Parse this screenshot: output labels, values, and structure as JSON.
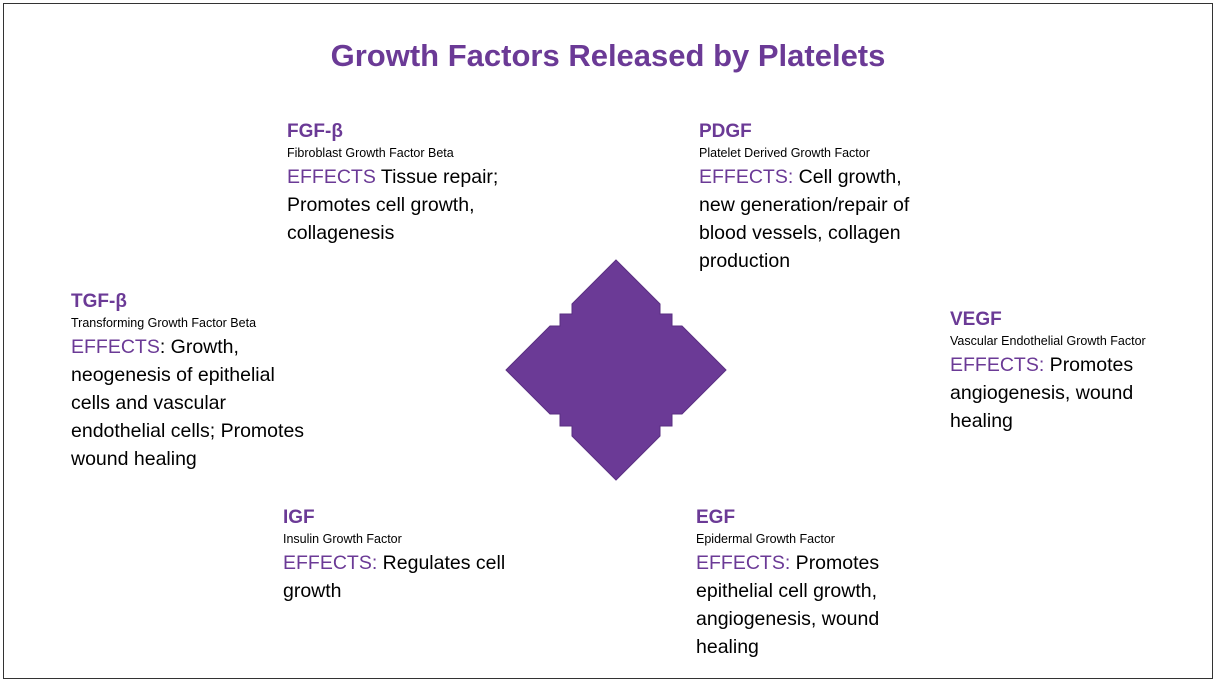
{
  "title": "Growth Factors Released by Platelets",
  "colors": {
    "accent": "#6b3a96",
    "arrow_fill": "#6b3a96",
    "text": "#000000",
    "border": "#333333"
  },
  "center_icon": "four-way-arrow-icon",
  "factors": {
    "fgf": {
      "abbr": "FGF-β",
      "full_name": "Fibroblast Growth Factor Beta",
      "effects_label": "EFFECTS",
      "effects_text": " Tissue repair; Promotes cell growth, collagenesis"
    },
    "pdgf": {
      "abbr": "PDGF",
      "full_name": "Platelet Derived Growth Factor",
      "effects_label": "EFFECTS:",
      "effects_text": " Cell growth, new generation/repair of blood vessels, collagen production"
    },
    "tgf": {
      "abbr": "TGF-β",
      "full_name": "Transforming Growth Factor Beta",
      "effects_label": "EFFECTS",
      "effects_text": ": Growth, neogenesis of epithelial cells and vascular endothelial cells; Promotes wound healing"
    },
    "vegf": {
      "abbr": "VEGF",
      "full_name": "Vascular Endothelial Growth Factor",
      "effects_label": "EFFECTS:",
      "effects_text": " Promotes angiogenesis, wound healing"
    },
    "igf": {
      "abbr": "IGF",
      "full_name": "Insulin Growth Factor",
      "effects_label": "EFFECTS:",
      "effects_text": " Regulates cell growth"
    },
    "egf": {
      "abbr": "EGF",
      "full_name": "Epidermal Growth Factor",
      "effects_label": "EFFECTS:",
      "effects_text": " Promotes epithelial cell growth, angiogenesis, wound healing"
    }
  }
}
